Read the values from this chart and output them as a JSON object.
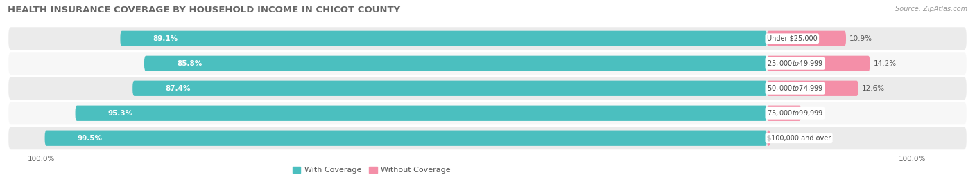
{
  "title": "HEALTH INSURANCE COVERAGE BY HOUSEHOLD INCOME IN CHICOT COUNTY",
  "source": "Source: ZipAtlas.com",
  "categories": [
    "Under $25,000",
    "$25,000 to $49,999",
    "$50,000 to $74,999",
    "$75,000 to $99,999",
    "$100,000 and over"
  ],
  "with_coverage": [
    89.1,
    85.8,
    87.4,
    95.3,
    99.5
  ],
  "without_coverage": [
    10.9,
    14.2,
    12.6,
    4.7,
    0.47
  ],
  "color_with": "#4BBFBF",
  "color_without": "#F48FA8",
  "row_bg_even": "#EBEBEB",
  "row_bg_odd": "#F7F7F7",
  "title_fontsize": 9.5,
  "label_fontsize": 7.5,
  "legend_fontsize": 8,
  "source_fontsize": 7,
  "bar_height": 0.62,
  "xlim_left": -105,
  "xlim_right": 28,
  "max_without": 20
}
